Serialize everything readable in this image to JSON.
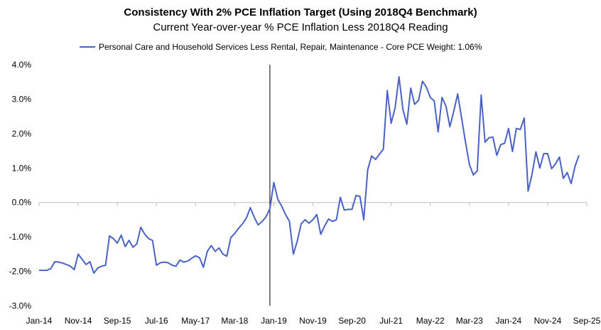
{
  "chart_data": {
    "type": "line",
    "title": "Consistency With 2% PCE Inflation Target (Using 2018Q4 Benchmark)",
    "subtitle": "Current Year-over-year % PCE Inflation Less 2018Q4 Reading",
    "xlabel": "",
    "ylabel": "",
    "ylim": [
      -3.0,
      4.0
    ],
    "y_ticks": [
      "-3.0%",
      "-2.0%",
      "-1.0%",
      "0.0%",
      "1.0%",
      "2.0%",
      "3.0%",
      "4.0%"
    ],
    "x_ticks": [
      "Jan-14",
      "Nov-14",
      "Sep-15",
      "Jul-16",
      "May-17",
      "Mar-18",
      "Jan-19",
      "Nov-19",
      "Sep-20",
      "Jul-21",
      "May-22",
      "Mar-23",
      "Jan-24",
      "Nov-24",
      "Sep-25"
    ],
    "x_range": [
      "Jan-14",
      "Sep-25"
    ],
    "benchmark_marker": "Dec-18",
    "legend_position": "top",
    "grid": false,
    "series_color": "#4A62C4",
    "series": [
      {
        "name": "Personal Care and Household Services Less Rental, Repair, Maintenance  - Core PCE Weight: 1.06%",
        "start": "Jan-14",
        "frequency": "monthly",
        "values": [
          -1.97,
          -1.97,
          -1.97,
          -1.92,
          -1.72,
          -1.73,
          -1.76,
          -1.8,
          -1.85,
          -1.95,
          -1.5,
          -1.65,
          -1.8,
          -1.72,
          -2.05,
          -1.9,
          -1.85,
          -1.82,
          -0.97,
          -1.05,
          -1.18,
          -0.95,
          -1.28,
          -1.1,
          -1.3,
          -1.2,
          -0.72,
          -0.92,
          -1.05,
          -1.1,
          -1.82,
          -1.75,
          -1.73,
          -1.75,
          -1.82,
          -1.85,
          -1.67,
          -1.73,
          -1.7,
          -1.62,
          -1.55,
          -1.6,
          -1.88,
          -1.42,
          -1.25,
          -1.42,
          -1.32,
          -1.5,
          -1.56,
          -1.02,
          -0.9,
          -0.75,
          -0.62,
          -0.45,
          -0.15,
          -0.43,
          -0.65,
          -0.55,
          -0.42,
          -0.18,
          0.58,
          0.1,
          -0.1,
          -0.35,
          -0.55,
          -1.5,
          -1.12,
          -0.62,
          -0.5,
          -0.6,
          -0.5,
          -0.35,
          -0.92,
          -0.68,
          -0.48,
          -0.55,
          -0.5,
          0.15,
          -0.22,
          -0.2,
          -0.2,
          0.2,
          0.18,
          -0.5,
          0.95,
          1.35,
          1.25,
          1.4,
          1.55,
          3.25,
          2.3,
          2.75,
          3.65,
          2.7,
          2.27,
          3.32,
          2.85,
          2.97,
          3.52,
          3.35,
          3.05,
          2.95,
          2.05,
          3.05,
          2.8,
          2.2,
          2.65,
          3.15,
          2.45,
          1.75,
          1.1,
          0.8,
          0.92,
          3.12,
          1.75,
          1.88,
          1.9,
          1.37,
          1.68,
          1.72,
          2.15,
          1.48,
          2.15,
          2.12,
          2.45,
          0.33,
          0.82,
          1.47,
          1.0,
          1.42,
          1.42,
          0.98,
          1.12,
          1.32,
          0.7,
          0.87,
          0.55,
          1.05,
          1.37
        ]
      }
    ]
  }
}
